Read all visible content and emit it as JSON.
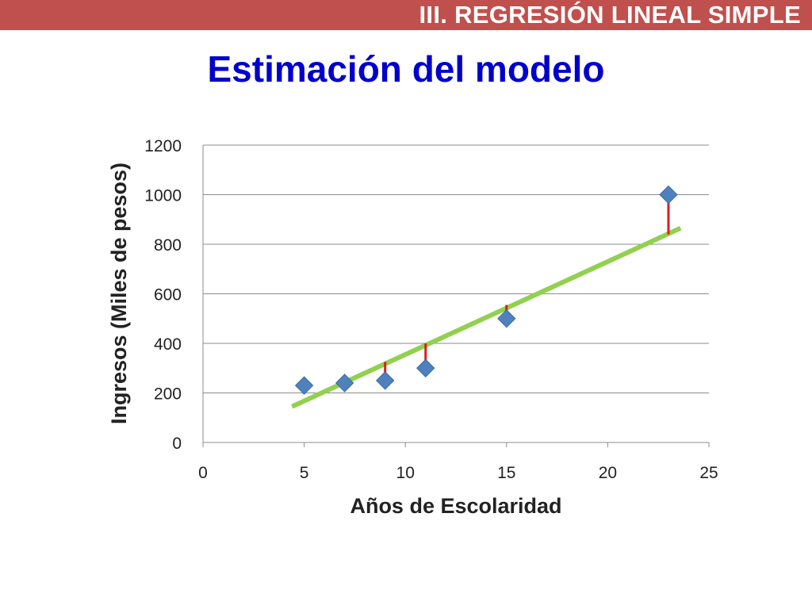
{
  "slide": {
    "banner": "III. REGRESIÓN LINEAL SIMPLE",
    "title": "Estimación del modelo",
    "colors": {
      "banner_bg": "#c0504d",
      "title": "#0000cc"
    }
  },
  "chart_data": {
    "type": "scatter",
    "title": "",
    "xlabel": "Años de Escolaridad",
    "ylabel": "Ingresos (Miles de pesos)",
    "xlim": [
      0,
      25
    ],
    "ylim": [
      0,
      1200
    ],
    "xticks": [
      "0",
      "5",
      "10",
      "15",
      "20",
      "25"
    ],
    "yticks": [
      "0",
      "200",
      "400",
      "600",
      "800",
      "1000",
      "1200"
    ],
    "grid": true,
    "legend": "none",
    "series": [
      {
        "x": [
          5,
          7,
          9,
          11,
          15,
          23
        ],
        "y": [
          230,
          240,
          250,
          300,
          500,
          1000
        ],
        "marker": "diamond",
        "color": "#4f81bd"
      }
    ],
    "regression_line": {
      "x": [
        4.4,
        23.6
      ],
      "y": [
        145,
        865
      ],
      "color": "#92d050"
    },
    "residuals": {
      "color": "#e31a1c",
      "segments": [
        {
          "x": 9,
          "y_from": 250,
          "y_to": 325
        },
        {
          "x": 11,
          "y_from": 300,
          "y_to": 400
        },
        {
          "x": 15,
          "y_from": 500,
          "y_to": 555
        },
        {
          "x": 23,
          "y_from": 840,
          "y_to": 1000
        }
      ]
    }
  }
}
